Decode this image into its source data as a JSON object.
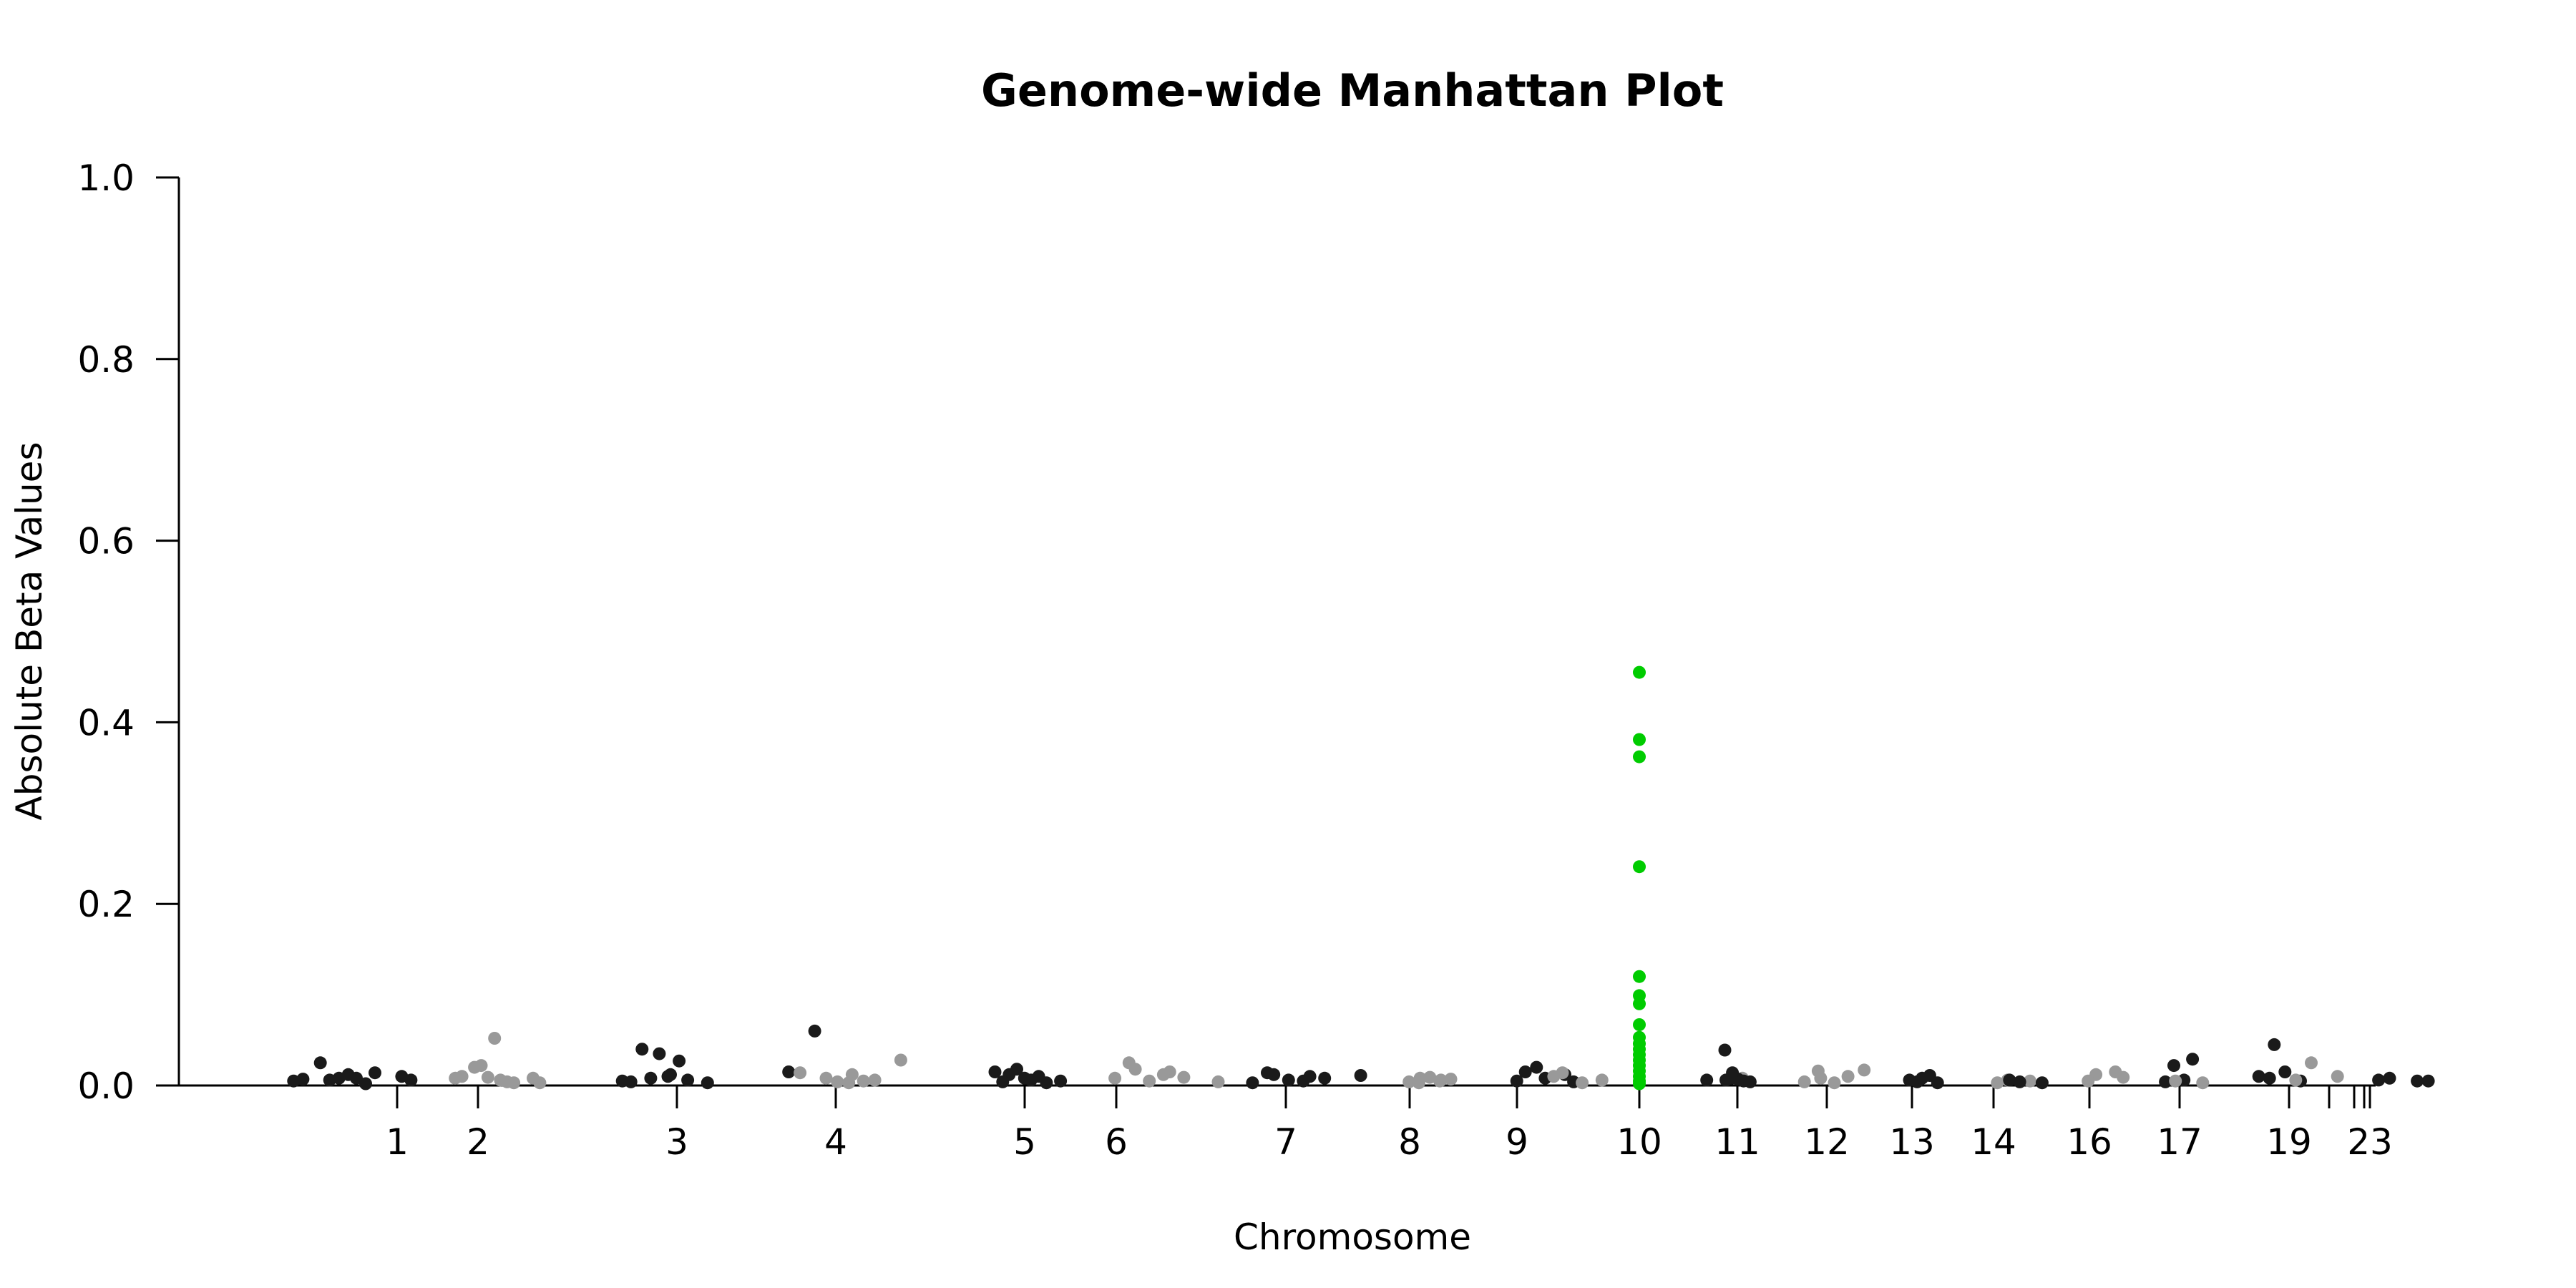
{
  "chart_data": {
    "type": "scatter",
    "title": "Genome-wide Manhattan Plot",
    "xlabel": "Chromosome",
    "ylabel": "Absolute Beta Values",
    "ylim": [
      0,
      1.0
    ],
    "yticks": [
      "0.0",
      "0.2",
      "0.4",
      "0.6",
      "0.8",
      "1.0"
    ],
    "chromosome_ticks": [
      "1",
      "2",
      "3",
      "4",
      "5",
      "6",
      "7",
      "8",
      "9",
      "10",
      "11",
      "12",
      "13",
      "14",
      "16",
      "17",
      "19",
      "23"
    ],
    "colors": {
      "dark": "#1a1a1a",
      "light": "#999999",
      "highlight": "#00cc00"
    },
    "highlight_chromosome": "10",
    "points": [
      {
        "chr": "1",
        "y": 0.025,
        "c": "dark"
      },
      {
        "chr": "1",
        "y": 0.005,
        "c": "dark"
      },
      {
        "chr": "1",
        "y": 0.008,
        "c": "dark"
      },
      {
        "chr": "1",
        "y": 0.006,
        "c": "dark"
      },
      {
        "chr": "1",
        "y": 0.007,
        "c": "dark"
      },
      {
        "chr": "1",
        "y": 0.002,
        "c": "dark"
      },
      {
        "chr": "1",
        "y": 0.008,
        "c": "dark"
      },
      {
        "chr": "1",
        "y": 0.01,
        "c": "dark"
      },
      {
        "chr": "1",
        "y": 0.014,
        "c": "dark"
      },
      {
        "chr": "1",
        "y": 0.012,
        "c": "dark"
      },
      {
        "chr": "1",
        "y": 0.006,
        "c": "dark"
      },
      {
        "chr": "2",
        "y": 0.02,
        "c": "light"
      },
      {
        "chr": "2",
        "y": 0.008,
        "c": "light"
      },
      {
        "chr": "2",
        "y": 0.006,
        "c": "light"
      },
      {
        "chr": "2",
        "y": 0.022,
        "c": "light"
      },
      {
        "chr": "2",
        "y": 0.01,
        "c": "light"
      },
      {
        "chr": "2",
        "y": 0.004,
        "c": "light"
      },
      {
        "chr": "2",
        "y": 0.009,
        "c": "light"
      },
      {
        "chr": "2",
        "y": 0.008,
        "c": "light"
      },
      {
        "chr": "2",
        "y": 0.003,
        "c": "light"
      },
      {
        "chr": "2",
        "y": 0.052,
        "c": "light"
      },
      {
        "chr": "2",
        "y": 0.003,
        "c": "light"
      },
      {
        "chr": "3",
        "y": 0.04,
        "c": "dark"
      },
      {
        "chr": "3",
        "y": 0.005,
        "c": "dark"
      },
      {
        "chr": "3",
        "y": 0.012,
        "c": "dark"
      },
      {
        "chr": "3",
        "y": 0.008,
        "c": "dark"
      },
      {
        "chr": "3",
        "y": 0.004,
        "c": "dark"
      },
      {
        "chr": "3",
        "y": 0.027,
        "c": "dark"
      },
      {
        "chr": "3",
        "y": 0.035,
        "c": "dark"
      },
      {
        "chr": "3",
        "y": 0.003,
        "c": "dark"
      },
      {
        "chr": "3",
        "y": 0.006,
        "c": "dark"
      },
      {
        "chr": "3",
        "y": 0.01,
        "c": "dark"
      },
      {
        "chr": "4",
        "y": 0.06,
        "c": "dark"
      },
      {
        "chr": "4",
        "y": 0.015,
        "c": "dark"
      },
      {
        "chr": "4",
        "y": 0.012,
        "c": "light"
      },
      {
        "chr": "4",
        "y": 0.008,
        "c": "light"
      },
      {
        "chr": "4",
        "y": 0.014,
        "c": "light"
      },
      {
        "chr": "4",
        "y": 0.005,
        "c": "light"
      },
      {
        "chr": "4",
        "y": 0.004,
        "c": "light"
      },
      {
        "chr": "4",
        "y": 0.028,
        "c": "light"
      },
      {
        "chr": "4",
        "y": 0.006,
        "c": "light"
      },
      {
        "chr": "4",
        "y": 0.003,
        "c": "light"
      },
      {
        "chr": "5",
        "y": 0.012,
        "c": "dark"
      },
      {
        "chr": "5",
        "y": 0.015,
        "c": "dark"
      },
      {
        "chr": "5",
        "y": 0.006,
        "c": "dark"
      },
      {
        "chr": "5",
        "y": 0.018,
        "c": "dark"
      },
      {
        "chr": "5",
        "y": 0.004,
        "c": "dark"
      },
      {
        "chr": "5",
        "y": 0.01,
        "c": "dark"
      },
      {
        "chr": "5",
        "y": 0.008,
        "c": "dark"
      },
      {
        "chr": "5",
        "y": 0.005,
        "c": "dark"
      },
      {
        "chr": "5",
        "y": 0.003,
        "c": "dark"
      },
      {
        "chr": "6",
        "y": 0.018,
        "c": "light"
      },
      {
        "chr": "6",
        "y": 0.008,
        "c": "light"
      },
      {
        "chr": "6",
        "y": 0.015,
        "c": "light"
      },
      {
        "chr": "6",
        "y": 0.005,
        "c": "light"
      },
      {
        "chr": "6",
        "y": 0.025,
        "c": "light"
      },
      {
        "chr": "6",
        "y": 0.009,
        "c": "light"
      },
      {
        "chr": "6",
        "y": 0.012,
        "c": "light"
      },
      {
        "chr": "6",
        "y": 0.004,
        "c": "light"
      },
      {
        "chr": "7",
        "y": 0.012,
        "c": "dark"
      },
      {
        "chr": "7",
        "y": 0.003,
        "c": "dark"
      },
      {
        "chr": "7",
        "y": 0.01,
        "c": "dark"
      },
      {
        "chr": "7",
        "y": 0.006,
        "c": "dark"
      },
      {
        "chr": "7",
        "y": 0.014,
        "c": "dark"
      },
      {
        "chr": "7",
        "y": 0.008,
        "c": "dark"
      },
      {
        "chr": "7",
        "y": 0.005,
        "c": "dark"
      },
      {
        "chr": "7",
        "y": 0.011,
        "c": "dark"
      },
      {
        "chr": "8",
        "y": 0.008,
        "c": "light"
      },
      {
        "chr": "8",
        "y": 0.004,
        "c": "light"
      },
      {
        "chr": "8",
        "y": 0.006,
        "c": "light"
      },
      {
        "chr": "8",
        "y": 0.009,
        "c": "light"
      },
      {
        "chr": "8",
        "y": 0.003,
        "c": "light"
      },
      {
        "chr": "8",
        "y": 0.007,
        "c": "light"
      },
      {
        "chr": "8",
        "y": 0.005,
        "c": "light"
      },
      {
        "chr": "9",
        "y": 0.02,
        "c": "dark"
      },
      {
        "chr": "9",
        "y": 0.005,
        "c": "dark"
      },
      {
        "chr": "9",
        "y": 0.012,
        "c": "dark"
      },
      {
        "chr": "9",
        "y": 0.008,
        "c": "dark"
      },
      {
        "chr": "9",
        "y": 0.015,
        "c": "dark"
      },
      {
        "chr": "9",
        "y": 0.004,
        "c": "dark"
      },
      {
        "chr": "9",
        "y": 0.01,
        "c": "light"
      },
      {
        "chr": "9",
        "y": 0.006,
        "c": "light"
      },
      {
        "chr": "9",
        "y": 0.003,
        "c": "light"
      },
      {
        "chr": "9",
        "y": 0.014,
        "c": "light"
      },
      {
        "chr": "10",
        "y": 0.455,
        "c": "highlight"
      },
      {
        "chr": "10",
        "y": 0.381,
        "c": "highlight"
      },
      {
        "chr": "10",
        "y": 0.362,
        "c": "highlight"
      },
      {
        "chr": "10",
        "y": 0.241,
        "c": "highlight"
      },
      {
        "chr": "10",
        "y": 0.12,
        "c": "highlight"
      },
      {
        "chr": "10",
        "y": 0.099,
        "c": "highlight"
      },
      {
        "chr": "10",
        "y": 0.09,
        "c": "highlight"
      },
      {
        "chr": "10",
        "y": 0.067,
        "c": "highlight"
      },
      {
        "chr": "10",
        "y": 0.053,
        "c": "highlight"
      },
      {
        "chr": "10",
        "y": 0.046,
        "c": "highlight"
      },
      {
        "chr": "10",
        "y": 0.04,
        "c": "highlight"
      },
      {
        "chr": "10",
        "y": 0.034,
        "c": "highlight"
      },
      {
        "chr": "10",
        "y": 0.028,
        "c": "highlight"
      },
      {
        "chr": "10",
        "y": 0.022,
        "c": "highlight"
      },
      {
        "chr": "10",
        "y": 0.016,
        "c": "highlight"
      },
      {
        "chr": "10",
        "y": 0.01,
        "c": "highlight"
      },
      {
        "chr": "10",
        "y": 0.005,
        "c": "highlight"
      },
      {
        "chr": "10",
        "y": 0.002,
        "c": "highlight"
      },
      {
        "chr": "10",
        "y": 0.039,
        "c": "dark"
      },
      {
        "chr": "10",
        "y": 0.006,
        "c": "dark"
      },
      {
        "chr": "10",
        "y": 0.008,
        "c": "light"
      },
      {
        "chr": "11",
        "y": 0.008,
        "c": "dark"
      },
      {
        "chr": "11",
        "y": 0.006,
        "c": "dark"
      },
      {
        "chr": "11",
        "y": 0.005,
        "c": "dark"
      },
      {
        "chr": "11",
        "y": 0.007,
        "c": "dark"
      },
      {
        "chr": "11",
        "y": 0.014,
        "c": "dark"
      },
      {
        "chr": "11",
        "y": 0.004,
        "c": "dark"
      },
      {
        "chr": "12",
        "y": 0.016,
        "c": "light"
      },
      {
        "chr": "12",
        "y": 0.004,
        "c": "light"
      },
      {
        "chr": "12",
        "y": 0.01,
        "c": "light"
      },
      {
        "chr": "12",
        "y": 0.003,
        "c": "light"
      },
      {
        "chr": "12",
        "y": 0.008,
        "c": "light"
      },
      {
        "chr": "12",
        "y": 0.017,
        "c": "light"
      },
      {
        "chr": "13",
        "y": 0.004,
        "c": "dark"
      },
      {
        "chr": "13",
        "y": 0.006,
        "c": "dark"
      },
      {
        "chr": "13",
        "y": 0.003,
        "c": "dark"
      },
      {
        "chr": "13",
        "y": 0.011,
        "c": "dark"
      },
      {
        "chr": "13",
        "y": 0.008,
        "c": "dark"
      },
      {
        "chr": "14",
        "y": 0.006,
        "c": "light"
      },
      {
        "chr": "14",
        "y": 0.003,
        "c": "light"
      },
      {
        "chr": "14",
        "y": 0.005,
        "c": "light"
      },
      {
        "chr": "14",
        "y": 0.004,
        "c": "dark"
      },
      {
        "chr": "14",
        "y": 0.006,
        "c": "dark"
      },
      {
        "chr": "14",
        "y": 0.003,
        "c": "dark"
      },
      {
        "chr": "16",
        "y": 0.012,
        "c": "light"
      },
      {
        "chr": "16",
        "y": 0.005,
        "c": "light"
      },
      {
        "chr": "16",
        "y": 0.009,
        "c": "light"
      },
      {
        "chr": "16",
        "y": 0.015,
        "c": "light"
      },
      {
        "chr": "17",
        "y": 0.022,
        "c": "dark"
      },
      {
        "chr": "17",
        "y": 0.004,
        "c": "dark"
      },
      {
        "chr": "17",
        "y": 0.029,
        "c": "dark"
      },
      {
        "chr": "17",
        "y": 0.006,
        "c": "dark"
      },
      {
        "chr": "17",
        "y": 0.005,
        "c": "light"
      },
      {
        "chr": "17",
        "y": 0.003,
        "c": "light"
      },
      {
        "chr": "19",
        "y": 0.045,
        "c": "dark"
      },
      {
        "chr": "19",
        "y": 0.01,
        "c": "dark"
      },
      {
        "chr": "19",
        "y": 0.005,
        "c": "dark"
      },
      {
        "chr": "19",
        "y": 0.015,
        "c": "dark"
      },
      {
        "chr": "19",
        "y": 0.008,
        "c": "dark"
      },
      {
        "chr": "19",
        "y": 0.025,
        "c": "light"
      },
      {
        "chr": "19",
        "y": 0.006,
        "c": "light"
      },
      {
        "chr": "19",
        "y": 0.01,
        "c": "light"
      },
      {
        "chr": "23",
        "y": 0.008,
        "c": "dark"
      },
      {
        "chr": "23",
        "y": 0.006,
        "c": "dark"
      },
      {
        "chr": "23",
        "y": 0.005,
        "c": "dark"
      },
      {
        "chr": "23",
        "y": 0.005,
        "c": "dark"
      }
    ]
  }
}
